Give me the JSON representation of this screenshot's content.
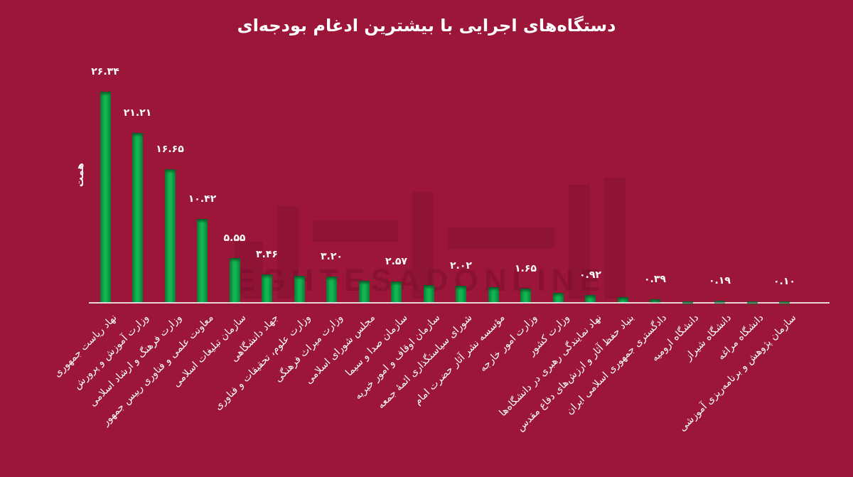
{
  "title": "دستگاه‌های اجرایی با بیشترین ادغام بودجه‌ای",
  "y_axis_label": "همت",
  "colors": {
    "background": "#9c163a",
    "bar": "#12b953",
    "bar_dark": "#0a7a35",
    "baseline": "#e9d6da",
    "text": "#ffffff"
  },
  "watermark": "EGHTESADONLINE",
  "chart_data": {
    "type": "bar",
    "title": "دستگاه‌های اجرایی با بیشترین ادغام بودجه‌ای",
    "xlabel": "",
    "ylabel": "همت",
    "grid": false,
    "legend": "none",
    "ylim": [
      0,
      28
    ],
    "categories": [
      "نهاد ریاست جمهوری",
      "وزارت آموزش و پرورش",
      "وزارت فرهنگ و ارشاد اسلامی",
      "معاونت علمی و فناوری رییس جمهور",
      "سازمان تبلیغات اسلامی",
      "جهاد دانشگاهی",
      "وزارت علوم، تحقیقات و فناوری",
      "وزارت میراث فرهنگی",
      "مجلس شورای اسلامی",
      "سازمان صدا و سیما",
      "سازمان اوقاف و امور خیریه",
      "شورای سیاستگذاری ائمهٔ جمعه",
      "مؤسسه نشر آثار حضرت امام",
      "وزارت امور خارجه",
      "وزارت کشور",
      "نهاد نمایندگی رهبری در دانشگاه‌ها",
      "بنیاد حفظ آثار و ارزش‌های دفاع مقدس",
      "دادگستری جمهوری اسلامی ایران",
      "دانشگاه ارومیه",
      "دانشگاه شیراز",
      "دانشگاه مراغه",
      "سازمان پژوهش و برنامه‌ریزی آموزشی"
    ],
    "values": [
      26.34,
      21.21,
      16.65,
      10.42,
      5.55,
      3.46,
      3.3,
      3.2,
      2.7,
      2.57,
      2.1,
      2.02,
      1.9,
      1.65,
      1.2,
      0.92,
      0.6,
      0.39,
      0.12,
      0.19,
      0.1,
      0.1
    ],
    "value_labels": [
      "۲۶.۳۴",
      "۲۱.۲۱",
      "۱۶.۶۵",
      "۱۰.۴۲",
      "۵.۵۵",
      "۳.۴۶",
      "",
      "۳.۲۰",
      "",
      "۲.۵۷",
      "",
      "۲.۰۲",
      "",
      "۱.۶۵",
      "",
      "۰.۹۲",
      "",
      "۰.۳۹",
      "",
      "۰.۱۹",
      "",
      "۰.۱۰"
    ]
  }
}
